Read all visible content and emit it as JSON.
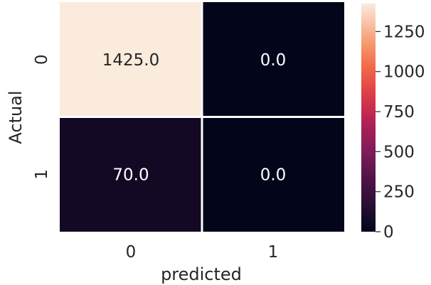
{
  "chart_data": {
    "type": "heatmap",
    "rows": [
      "0",
      "1"
    ],
    "cols": [
      "0",
      "1"
    ],
    "values": [
      [
        1425.0,
        0.0
      ],
      [
        70.0,
        0.0
      ]
    ],
    "cell_labels": [
      [
        "1425.0",
        "0.0"
      ],
      [
        "70.0",
        "0.0"
      ]
    ],
    "xlabel": "predicted",
    "ylabel": "Actual",
    "colorbar": {
      "min": 0,
      "max": 1425,
      "ticks": [
        0,
        250,
        500,
        750,
        1000,
        1250
      ],
      "tick_labels": [
        "0",
        "250",
        "500",
        "750",
        "1000",
        "1250"
      ]
    },
    "colormap": "rocket",
    "grid": false
  }
}
